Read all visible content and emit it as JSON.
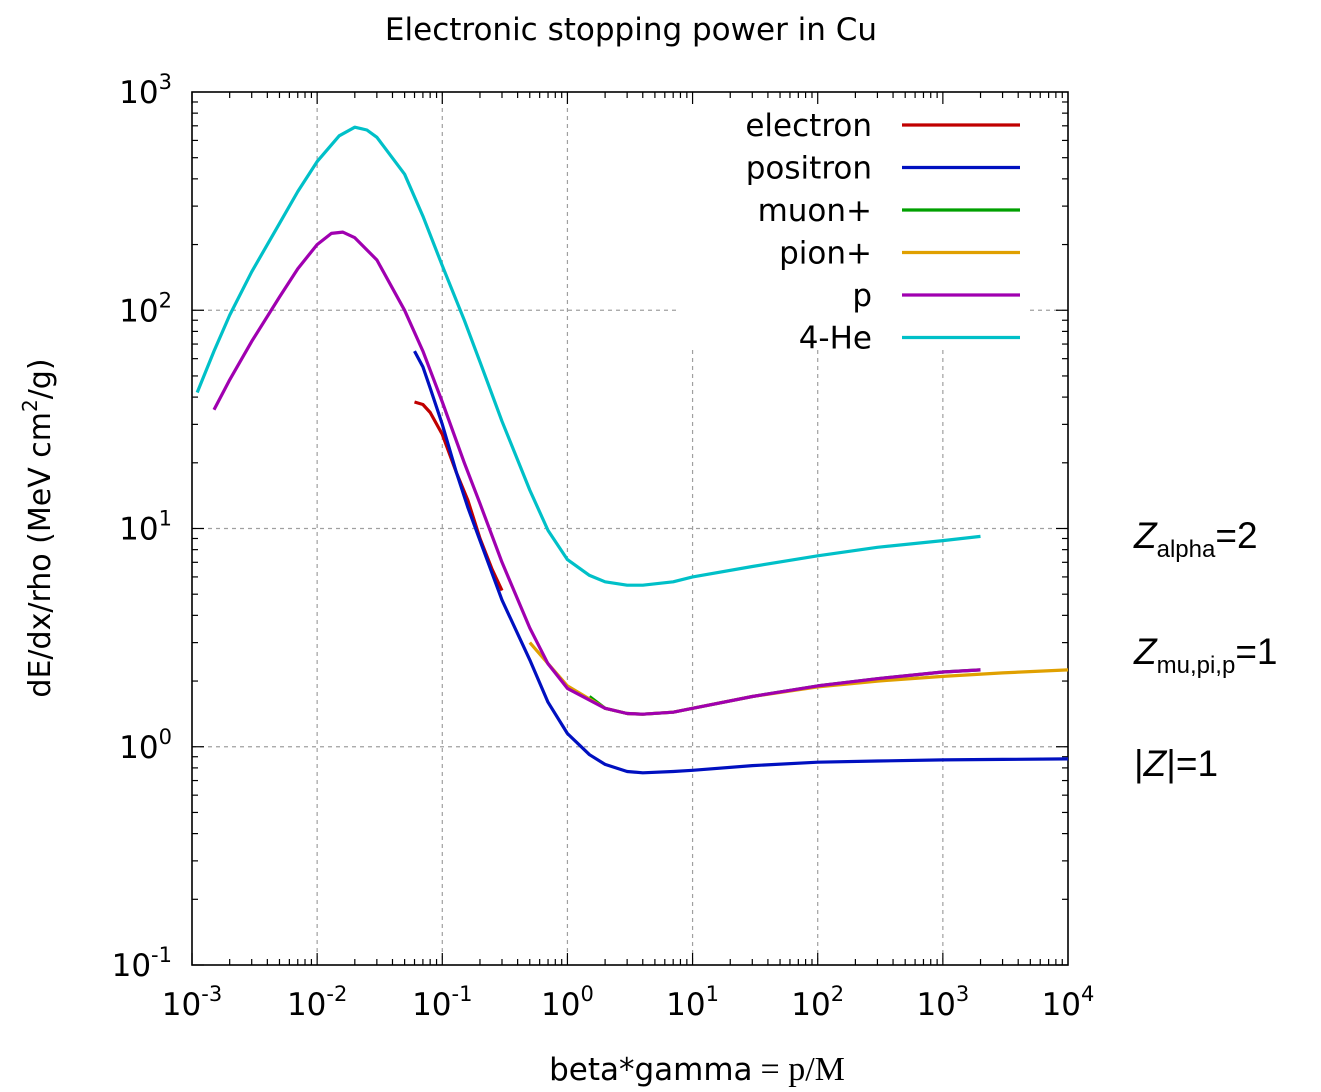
{
  "chart_data": {
    "type": "line",
    "title": "Electronic stopping power in Cu",
    "xlabel_main": "beta*gamma",
    "xlabel_eq": "= p/M",
    "ylabel": "dE/dx/rho (MeV cm",
    "ylabel_sup": "2",
    "ylabel_end": "/g)",
    "x_scale": "log",
    "y_scale": "log",
    "xlim": [
      0.001,
      10000
    ],
    "ylim": [
      0.1,
      1000
    ],
    "grid": true,
    "legend_position": "top-right",
    "x_ticks": [
      {
        "value": 0.001,
        "base": "10",
        "exp": "-3"
      },
      {
        "value": 0.01,
        "base": "10",
        "exp": "-2"
      },
      {
        "value": 0.1,
        "base": "10",
        "exp": "-1"
      },
      {
        "value": 1,
        "base": "10",
        "exp": "0"
      },
      {
        "value": 10,
        "base": "10",
        "exp": "1"
      },
      {
        "value": 100,
        "base": "10",
        "exp": "2"
      },
      {
        "value": 1000,
        "base": "10",
        "exp": "3"
      },
      {
        "value": 10000,
        "base": "10",
        "exp": "4"
      }
    ],
    "y_ticks": [
      {
        "value": 0.1,
        "base": "10",
        "exp": "-1"
      },
      {
        "value": 1,
        "base": "10",
        "exp": "0"
      },
      {
        "value": 10,
        "base": "10",
        "exp": "1"
      },
      {
        "value": 100,
        "base": "10",
        "exp": "2"
      },
      {
        "value": 1000,
        "base": "10",
        "exp": "3"
      }
    ],
    "series": [
      {
        "name": "electron",
        "color": "#c00000",
        "points": [
          [
            0.06,
            38
          ],
          [
            0.07,
            37
          ],
          [
            0.08,
            34
          ],
          [
            0.1,
            27
          ],
          [
            0.13,
            18
          ],
          [
            0.16,
            13.5
          ],
          [
            0.2,
            9
          ],
          [
            0.25,
            6.5
          ],
          [
            0.3,
            5.2
          ]
        ]
      },
      {
        "name": "positron",
        "color": "#0010c0",
        "points": [
          [
            0.06,
            65
          ],
          [
            0.07,
            55
          ],
          [
            0.08,
            44
          ],
          [
            0.1,
            30
          ],
          [
            0.13,
            18
          ],
          [
            0.16,
            12.5
          ],
          [
            0.2,
            8.8
          ],
          [
            0.3,
            4.7
          ],
          [
            0.5,
            2.5
          ],
          [
            0.7,
            1.6
          ],
          [
            1,
            1.15
          ],
          [
            1.5,
            0.92
          ],
          [
            2,
            0.83
          ],
          [
            3,
            0.77
          ],
          [
            4,
            0.76
          ],
          [
            7,
            0.77
          ],
          [
            10,
            0.78
          ],
          [
            30,
            0.82
          ],
          [
            100,
            0.85
          ],
          [
            300,
            0.86
          ],
          [
            1000,
            0.87
          ],
          [
            3000,
            0.875
          ],
          [
            10000,
            0.88
          ]
        ]
      },
      {
        "name": "muon+",
        "color": "#00a000",
        "points": [
          [
            1.5,
            1.7
          ],
          [
            2,
            1.5
          ],
          [
            3,
            1.42
          ],
          [
            4,
            1.41
          ],
          [
            7,
            1.44
          ],
          [
            10,
            1.5
          ],
          [
            30,
            1.7
          ],
          [
            100,
            1.9
          ],
          [
            300,
            2.05
          ],
          [
            1000,
            2.2
          ],
          [
            2000,
            2.25
          ]
        ]
      },
      {
        "name": "pion+",
        "color": "#e0a000",
        "points": [
          [
            0.5,
            3.0
          ],
          [
            1,
            1.9
          ],
          [
            2,
            1.5
          ],
          [
            3,
            1.42
          ],
          [
            4,
            1.41
          ],
          [
            7,
            1.44
          ],
          [
            10,
            1.5
          ],
          [
            30,
            1.7
          ],
          [
            100,
            1.88
          ],
          [
            300,
            2.0
          ],
          [
            1000,
            2.1
          ],
          [
            3000,
            2.18
          ],
          [
            10000,
            2.25
          ]
        ]
      },
      {
        "name": "p",
        "color": "#a000b0",
        "points": [
          [
            0.0015,
            35
          ],
          [
            0.002,
            48
          ],
          [
            0.003,
            72
          ],
          [
            0.005,
            115
          ],
          [
            0.007,
            155
          ],
          [
            0.01,
            200
          ],
          [
            0.013,
            225
          ],
          [
            0.016,
            228
          ],
          [
            0.02,
            215
          ],
          [
            0.03,
            170
          ],
          [
            0.05,
            100
          ],
          [
            0.07,
            65
          ],
          [
            0.1,
            38
          ],
          [
            0.15,
            20
          ],
          [
            0.2,
            13
          ],
          [
            0.3,
            7
          ],
          [
            0.5,
            3.5
          ],
          [
            0.7,
            2.4
          ],
          [
            1,
            1.85
          ],
          [
            2,
            1.5
          ],
          [
            3,
            1.42
          ],
          [
            4,
            1.41
          ],
          [
            7,
            1.44
          ],
          [
            10,
            1.5
          ],
          [
            30,
            1.7
          ],
          [
            100,
            1.9
          ],
          [
            300,
            2.05
          ],
          [
            1000,
            2.2
          ],
          [
            2000,
            2.25
          ]
        ]
      },
      {
        "name": "4-He",
        "color": "#00c0c8",
        "points": [
          [
            0.0011,
            42
          ],
          [
            0.0015,
            65
          ],
          [
            0.002,
            95
          ],
          [
            0.003,
            150
          ],
          [
            0.005,
            250
          ],
          [
            0.007,
            350
          ],
          [
            0.01,
            480
          ],
          [
            0.015,
            630
          ],
          [
            0.02,
            690
          ],
          [
            0.025,
            670
          ],
          [
            0.03,
            620
          ],
          [
            0.05,
            420
          ],
          [
            0.07,
            270
          ],
          [
            0.1,
            160
          ],
          [
            0.15,
            90
          ],
          [
            0.2,
            58
          ],
          [
            0.3,
            31
          ],
          [
            0.5,
            15
          ],
          [
            0.7,
            9.8
          ],
          [
            1,
            7.2
          ],
          [
            1.5,
            6.1
          ],
          [
            2,
            5.7
          ],
          [
            3,
            5.5
          ],
          [
            4,
            5.5
          ],
          [
            7,
            5.7
          ],
          [
            10,
            6.0
          ],
          [
            30,
            6.7
          ],
          [
            100,
            7.5
          ],
          [
            300,
            8.2
          ],
          [
            1000,
            8.8
          ],
          [
            2000,
            9.2
          ]
        ]
      }
    ],
    "annotations": [
      {
        "main": "Z",
        "sub": "alpha",
        "rest": "=2",
        "at_y": 9.0
      },
      {
        "main": "Z",
        "sub": "mu,pi,p",
        "rest": "=1",
        "at_y": 2.0
      },
      {
        "pre": "|",
        "main": "Z",
        "rest": "|=1",
        "at_y": 0.88
      }
    ]
  }
}
